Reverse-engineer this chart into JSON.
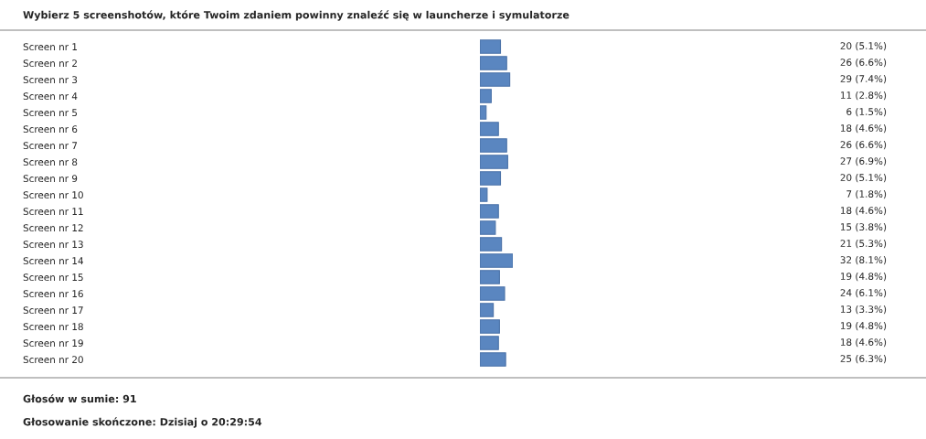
{
  "chart_data": {
    "type": "bar",
    "orientation": "horizontal",
    "title": "Wybierz 5 screenshotów, które Twoim zdaniem powinny znaleźć się w launcherze i symulatorze",
    "categories": [
      "Screen nr 1",
      "Screen nr 2",
      "Screen nr 3",
      "Screen nr 4",
      "Screen nr 5",
      "Screen nr 6",
      "Screen nr 7",
      "Screen nr 8",
      "Screen nr 9",
      "Screen nr 10",
      "Screen nr 11",
      "Screen nr 12",
      "Screen nr 13",
      "Screen nr 14",
      "Screen nr 15",
      "Screen nr 16",
      "Screen nr 17",
      "Screen nr 18",
      "Screen nr 19",
      "Screen nr 20"
    ],
    "values": [
      20,
      26,
      29,
      11,
      6,
      18,
      26,
      27,
      20,
      7,
      18,
      15,
      21,
      32,
      19,
      24,
      13,
      19,
      18,
      25
    ],
    "value_labels": [
      "20 (5.1%)",
      "26 (6.6%)",
      "29 (7.4%)",
      "11 (2.8%)",
      "6 (1.5%)",
      "18 (4.6%)",
      "26 (6.6%)",
      "27 (6.9%)",
      "20 (5.1%)",
      "7 (1.8%)",
      "18 (4.6%)",
      "15 (3.8%)",
      "21 (5.3%)",
      "32 (8.1%)",
      "19 (4.8%)",
      "24 (6.1%)",
      "13 (3.3%)",
      "19 (4.8%)",
      "18 (4.6%)",
      "25 (6.3%)"
    ],
    "color": "#5a86c0",
    "tick_labels": "y",
    "grid": false,
    "legend": false,
    "annotations": [
      "Głosów w sumie: 91",
      "Głosowanie skończone: Dzisiaj o 20:29:54"
    ]
  }
}
